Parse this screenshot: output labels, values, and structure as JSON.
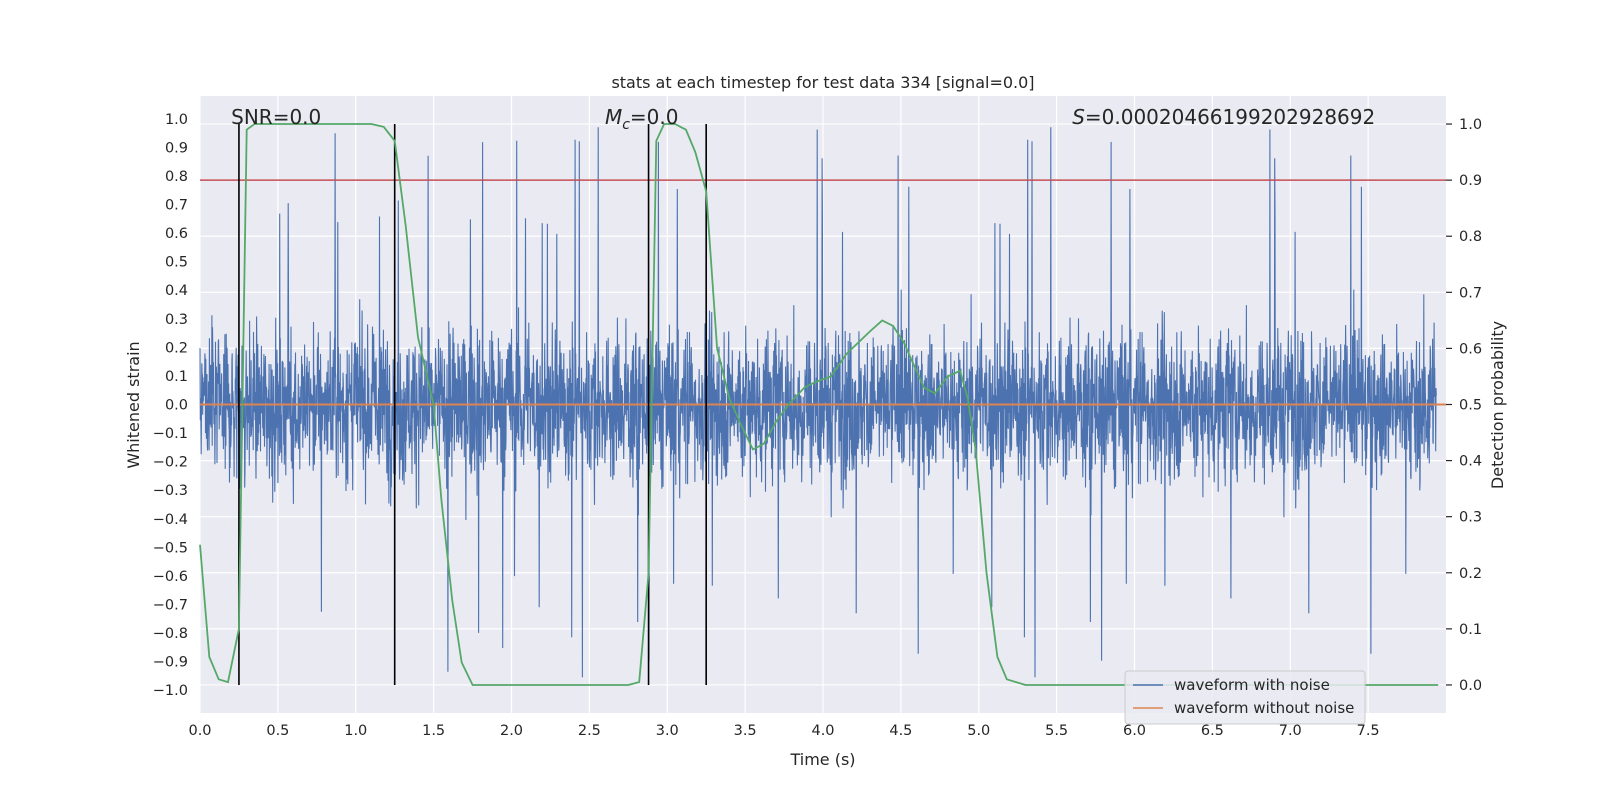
{
  "chart_data": {
    "type": "line",
    "title": "stats at each timestep for test data 334 [signal=0.0]",
    "xlabel": "Time (s)",
    "ylabel_left": "Whitened strain",
    "ylabel_right": "Detection probability",
    "xlim": [
      0.0,
      8.0
    ],
    "ylim_left": [
      -1.08,
      1.08
    ],
    "ylim_right": [
      -0.05,
      1.05
    ],
    "xticks": [
      0.0,
      0.5,
      1.0,
      1.5,
      2.0,
      2.5,
      3.0,
      3.5,
      4.0,
      4.5,
      5.0,
      5.5,
      6.0,
      6.5,
      7.0,
      7.5
    ],
    "xtick_labels": [
      "0.0",
      "0.5",
      "1.0",
      "1.5",
      "2.0",
      "2.5",
      "3.0",
      "3.5",
      "4.0",
      "4.5",
      "5.0",
      "5.5",
      "6.0",
      "6.5",
      "7.0",
      "7.5"
    ],
    "yticks_left": [
      1.0,
      0.9,
      0.8,
      0.7,
      0.6,
      0.5,
      0.4,
      0.3,
      0.2,
      0.1,
      0.0,
      -0.1,
      -0.2,
      -0.3,
      -0.4,
      -0.5,
      -0.6,
      -0.7,
      -0.8,
      -0.9,
      -1.0
    ],
    "ytick_labels_left": [
      "1.0",
      "0.9",
      "0.8",
      "0.7",
      "0.6",
      "0.5",
      "0.4",
      "0.3",
      "0.2",
      "0.1",
      "0.0",
      "−0.1",
      "−0.2",
      "−0.3",
      "−0.4",
      "−0.5",
      "−0.6",
      "−0.7",
      "−0.8",
      "−0.9",
      "−1.0"
    ],
    "yticks_right": [
      1.0,
      0.9,
      0.8,
      0.7,
      0.6,
      0.5,
      0.4,
      0.3,
      0.2,
      0.1,
      0.0
    ],
    "ytick_labels_right": [
      "1.0",
      "0.9",
      "0.8",
      "0.7",
      "0.6",
      "0.5",
      "0.4",
      "0.3",
      "0.2",
      "0.1",
      "0.0"
    ],
    "annotations": [
      {
        "text": "SNR=0.0",
        "x": 0.2
      },
      {
        "text": "M_c=0.0",
        "x": 2.6
      },
      {
        "text": "S=0.00020466199202928692",
        "x": 5.6
      }
    ],
    "threshold_right": 0.9,
    "vlines": [
      0.25,
      1.25,
      2.88,
      3.25
    ],
    "noise_series": {
      "name": "waveform with noise",
      "color": "#4c72b0",
      "sample_rate": 512,
      "typical_max": 0.45,
      "typical_min": -0.45,
      "peak_max": 1.0,
      "peak_min": -1.0
    },
    "clean_series": {
      "name": "waveform without noise",
      "color": "#dd8452",
      "value": 0.0
    },
    "prob_series": {
      "name": "detection probability",
      "color": "#55a868",
      "x": [
        0.0,
        0.06,
        0.12,
        0.18,
        0.25,
        0.3,
        0.35,
        0.5,
        0.8,
        1.0,
        1.1,
        1.18,
        1.25,
        1.32,
        1.4,
        1.5,
        1.55,
        1.62,
        1.68,
        1.75,
        2.0,
        2.5,
        2.75,
        2.82,
        2.88,
        2.93,
        2.98,
        3.05,
        3.12,
        3.18,
        3.25,
        3.32,
        3.4,
        3.48,
        3.55,
        3.62,
        3.7,
        3.78,
        3.88,
        3.95,
        4.05,
        4.15,
        4.3,
        4.38,
        4.45,
        4.52,
        4.6,
        4.65,
        4.72,
        4.8,
        4.88,
        4.93,
        4.98,
        5.05,
        5.12,
        5.18,
        5.3,
        5.5,
        7.95
      ],
      "y": [
        0.25,
        0.05,
        0.01,
        0.005,
        0.1,
        0.99,
        1.0,
        1.0,
        1.0,
        1.0,
        1.0,
        0.995,
        0.97,
        0.82,
        0.62,
        0.5,
        0.33,
        0.15,
        0.04,
        0.0,
        0.0,
        0.0,
        0.0,
        0.005,
        0.2,
        0.97,
        1.0,
        1.0,
        0.99,
        0.95,
        0.88,
        0.6,
        0.51,
        0.46,
        0.42,
        0.43,
        0.47,
        0.5,
        0.53,
        0.54,
        0.55,
        0.59,
        0.63,
        0.65,
        0.64,
        0.61,
        0.56,
        0.53,
        0.52,
        0.55,
        0.56,
        0.51,
        0.42,
        0.2,
        0.05,
        0.01,
        0.0,
        0.0,
        0.0
      ]
    },
    "legend": {
      "placement": "bottom-right",
      "entries": [
        {
          "label": "waveform with noise",
          "color": "#4c72b0"
        },
        {
          "label": "waveform without noise",
          "color": "#dd8452"
        }
      ]
    },
    "colors": {
      "background": "#eaeaf2",
      "grid": "#ffffff",
      "threshold": "#c44e52",
      "vline": "#000000"
    }
  }
}
